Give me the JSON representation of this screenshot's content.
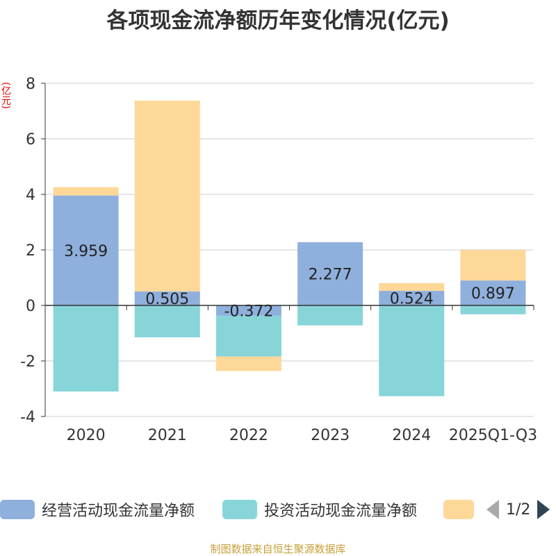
{
  "title": "各项现金流净额历年变化情况(亿元)",
  "unit_label": "(亿元)",
  "legend": {
    "items": [
      {
        "label": "经营活动现金流量净额",
        "color": "#8fb0dc"
      },
      {
        "label": "投资活动现金流量净额",
        "color": "#88d5d9"
      },
      {
        "label": "",
        "color": "#fdd898"
      }
    ],
    "page": "1/2"
  },
  "source": "制图数据来自恒生聚源数据库",
  "chart_data": {
    "type": "bar",
    "stacked": true,
    "categories": [
      "2020",
      "2021",
      "2022",
      "2023",
      "2024",
      "2025Q1-Q3"
    ],
    "ylim": [
      -4,
      8
    ],
    "yticks": [
      -4,
      -2,
      0,
      2,
      4,
      6,
      8
    ],
    "grid": true,
    "series": [
      {
        "name": "经营活动现金流量净额",
        "color": "#8fb0dc",
        "values": [
          3.959,
          0.505,
          -0.372,
          2.277,
          0.524,
          0.897
        ],
        "labels": [
          "3.959",
          "0.505",
          "-0.372",
          "2.277",
          "0.524",
          "0.897"
        ]
      },
      {
        "name": "投资活动现金流量净额",
        "color": "#88d5d9",
        "values": [
          -3.1,
          -1.15,
          -1.47,
          -0.72,
          -3.27,
          -0.32
        ]
      },
      {
        "name": "",
        "color": "#fdd898",
        "values": [
          0.3,
          6.87,
          -0.52,
          0,
          0.28,
          1.1
        ]
      }
    ]
  }
}
